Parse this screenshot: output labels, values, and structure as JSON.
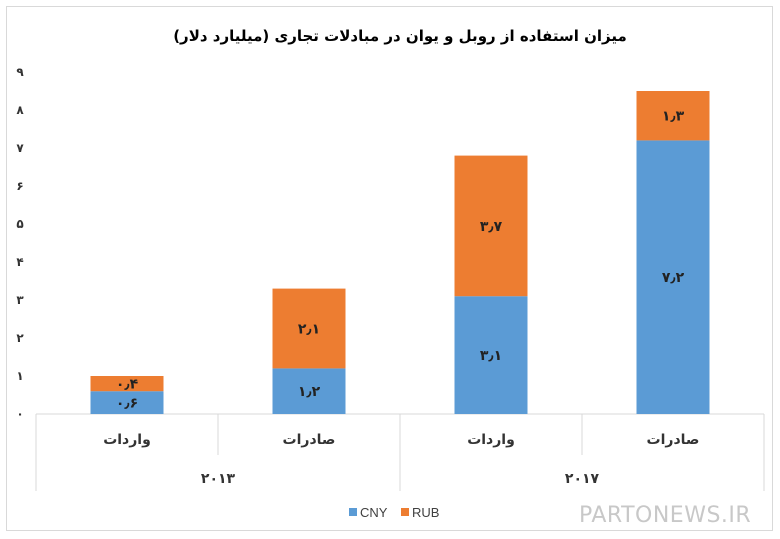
{
  "chart_data": {
    "type": "bar",
    "stacked": true,
    "title": "میزان استفاده از روبل و یوان در مبادلات تجاری (میلیارد دلار)",
    "ylim": [
      0,
      9
    ],
    "yticks": [
      "۰",
      "۱",
      "۲",
      "۳",
      "۴",
      "۵",
      "۶",
      "۷",
      "۸",
      "۹"
    ],
    "categories": [
      {
        "label": "واردات",
        "group": "۲۰۱۳"
      },
      {
        "label": "صادرات",
        "group": "۲۰۱۳"
      },
      {
        "label": "واردات",
        "group": "۲۰۱۷"
      },
      {
        "label": "صادرات",
        "group": "۲۰۱۷"
      }
    ],
    "groups": [
      "۲۰۱۳",
      "۲۰۱۷"
    ],
    "series": [
      {
        "name": "CNY",
        "color": "#5b9bd5",
        "values": [
          0.6,
          1.2,
          3.1,
          7.2
        ],
        "labels": [
          "۰٫۶",
          "۱٫۲",
          "۳٫۱",
          "۷٫۲"
        ]
      },
      {
        "name": "RUB",
        "color": "#ed7d31",
        "values": [
          0.4,
          2.1,
          3.7,
          1.3
        ],
        "labels": [
          "۰٫۴",
          "۲٫۱",
          "۳٫۷",
          "۱٫۳"
        ]
      }
    ],
    "grid": false,
    "legend": "bottom"
  },
  "watermark": "PARTONEWS.IR"
}
